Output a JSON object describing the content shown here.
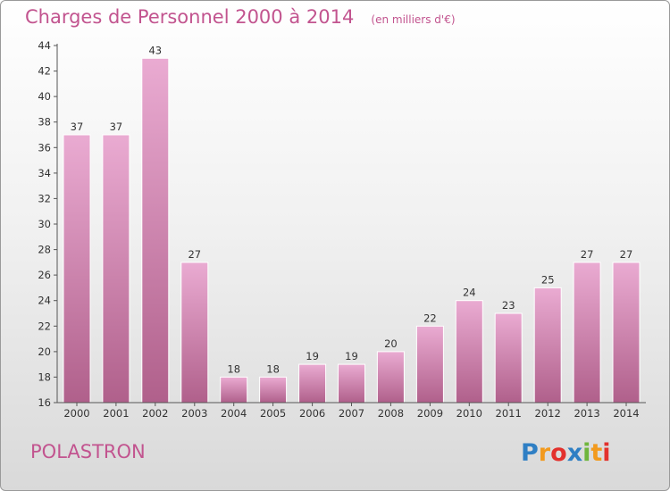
{
  "header": {
    "title": "Charges de Personnel 2000 à 2014",
    "subtitle": "(en milliers d'€)"
  },
  "footer": {
    "town": "POLASTRON",
    "logo_text": "Proxiti"
  },
  "colors": {
    "accent": "#c2548f",
    "bar_light": "#e9a9d0",
    "bar_dark": "#b4628e"
  },
  "chart_data": {
    "type": "bar",
    "title": "Charges de Personnel 2000 à 2014",
    "subtitle": "(en milliers d'€)",
    "categories": [
      "2000",
      "2001",
      "2002",
      "2003",
      "2004",
      "2005",
      "2006",
      "2007",
      "2008",
      "2009",
      "2010",
      "2011",
      "2012",
      "2013",
      "2014"
    ],
    "values": [
      37,
      37,
      43,
      27,
      18,
      18,
      19,
      19,
      20,
      22,
      24,
      23,
      25,
      27,
      27
    ],
    "ylim": [
      16,
      44
    ],
    "yticks": [
      16,
      18,
      20,
      22,
      24,
      26,
      28,
      30,
      32,
      34,
      36,
      38,
      40,
      42,
      44
    ],
    "grid": false,
    "data_labels": true
  }
}
